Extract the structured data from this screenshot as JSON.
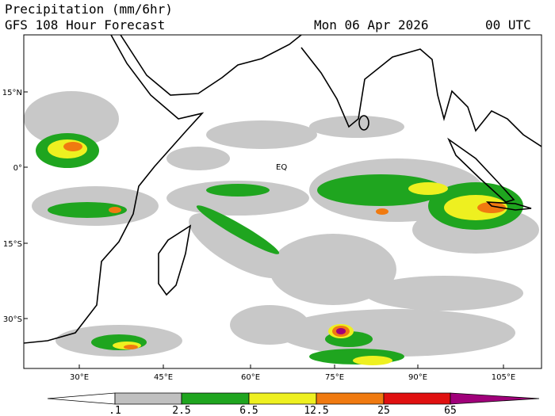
{
  "header": {
    "title": "Precipitation (mm/6hr)",
    "subtitle": "GFS 108 Hour Forecast",
    "date": "Mon 06 Apr 2026",
    "time": "00 UTC"
  },
  "map": {
    "lat_labels": [
      "15°N",
      "0°",
      "15°S",
      "30°S"
    ],
    "lon_labels": [
      "30°E",
      "45°E",
      "60°E",
      "75°E",
      "90°E",
      "105°E"
    ],
    "annotation": "EQ"
  },
  "legend": {
    "labels": [
      ".1",
      "2.5",
      "6.5",
      "12.5",
      "25",
      "65"
    ],
    "colors": [
      "#ffffff",
      "#c0c0c0",
      "#1fa51f",
      "#eef020",
      "#f07a10",
      "#e01010",
      "#a0007a"
    ]
  }
}
